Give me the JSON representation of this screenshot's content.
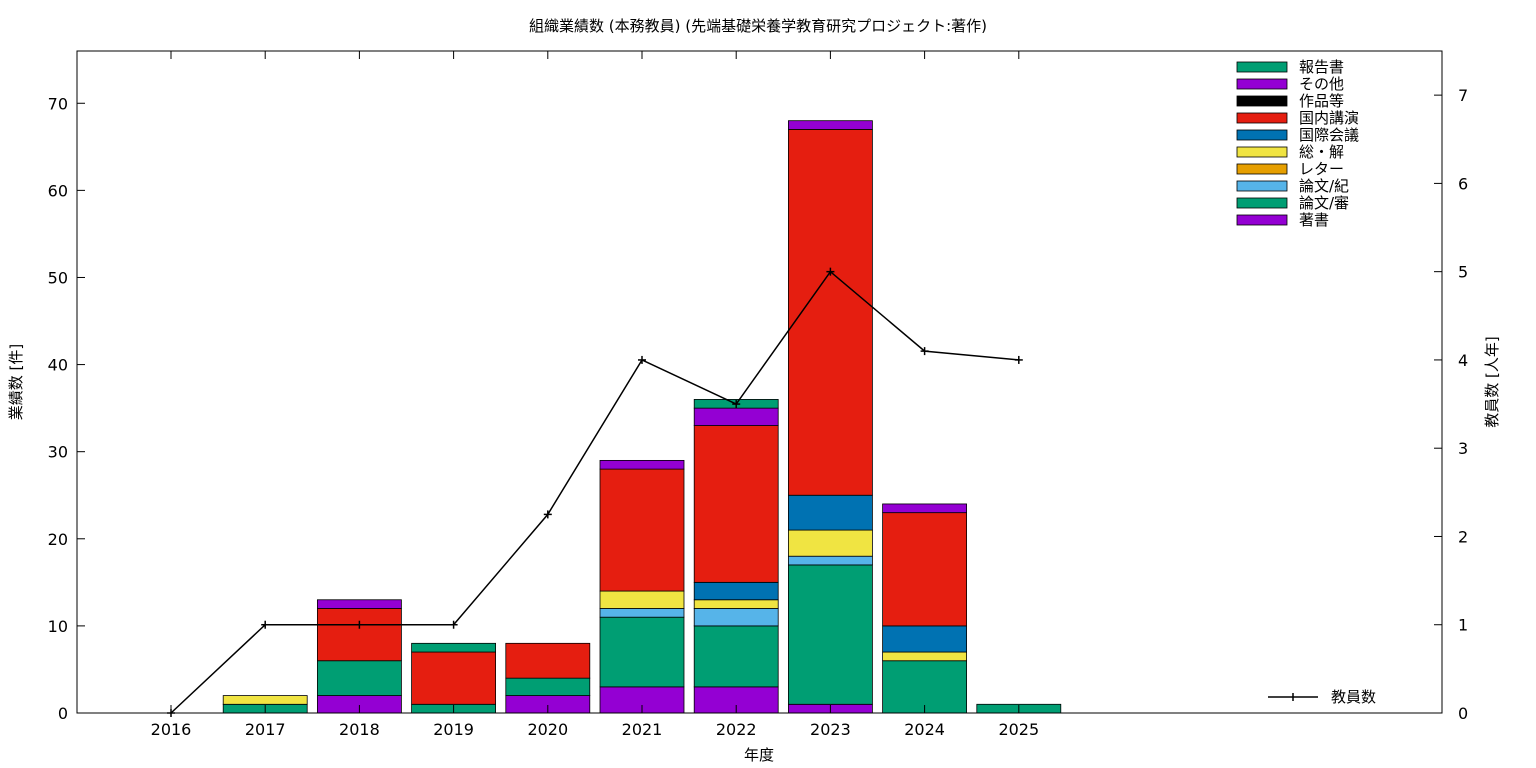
{
  "chart_data": {
    "type": "bar",
    "title": "組織業績数 (本務教員) (先端基礎栄養学教育研究プロジェクト:著作)",
    "xlabel": "年度",
    "ylabel": "業績数 [件]",
    "y2label": "教員数 [人年]",
    "categories": [
      "2016",
      "2017",
      "2018",
      "2019",
      "2020",
      "2021",
      "2022",
      "2023",
      "2024",
      "2025"
    ],
    "ylim": [
      0,
      76
    ],
    "y_ticks": [
      0,
      10,
      20,
      30,
      40,
      50,
      60,
      70
    ],
    "y2lim": [
      0,
      7.5
    ],
    "y2_ticks": [
      0,
      1,
      2,
      3,
      4,
      5,
      6,
      7
    ],
    "grid": false,
    "legend_position": "top-right",
    "series": [
      {
        "name": "著書",
        "color": "#9400d3",
        "values": [
          0,
          0,
          2,
          0,
          2,
          3,
          3,
          1,
          0,
          0
        ]
      },
      {
        "name": "論文/審",
        "color": "#009e73",
        "values": [
          0,
          1,
          4,
          1,
          2,
          8,
          7,
          16,
          6,
          1
        ]
      },
      {
        "name": "論文/紀",
        "color": "#56b4e9",
        "values": [
          0,
          0,
          0,
          0,
          0,
          1,
          2,
          1,
          0,
          0
        ]
      },
      {
        "name": "レター",
        "color": "#e69f00",
        "values": [
          0,
          0,
          0,
          0,
          0,
          0,
          0,
          0,
          0,
          0
        ]
      },
      {
        "name": "総・解",
        "color": "#f0e442",
        "values": [
          0,
          1,
          0,
          0,
          0,
          2,
          1,
          3,
          1,
          0
        ]
      },
      {
        "name": "国際会議",
        "color": "#0072b2",
        "values": [
          0,
          0,
          0,
          0,
          0,
          0,
          2,
          4,
          3,
          0
        ]
      },
      {
        "name": "国内講演",
        "color": "#e51e10",
        "values": [
          0,
          0,
          6,
          6,
          4,
          14,
          18,
          42,
          13,
          0
        ]
      },
      {
        "name": "作品等",
        "color": "#000000",
        "values": [
          0,
          0,
          0,
          0,
          0,
          0,
          0,
          0,
          0,
          0
        ]
      },
      {
        "name": "その他",
        "color": "#9400d3",
        "values": [
          0,
          0,
          1,
          0,
          0,
          1,
          2,
          1,
          1,
          0
        ]
      },
      {
        "name": "報告書",
        "color": "#009e73",
        "values": [
          0,
          0,
          0,
          1,
          0,
          0,
          1,
          0,
          0,
          0
        ]
      }
    ],
    "line": {
      "name": "教員数",
      "axis": "y2",
      "color": "#000000",
      "values": [
        0,
        1,
        1,
        1,
        2.25,
        4,
        3.5,
        5,
        4.1,
        4
      ]
    }
  }
}
